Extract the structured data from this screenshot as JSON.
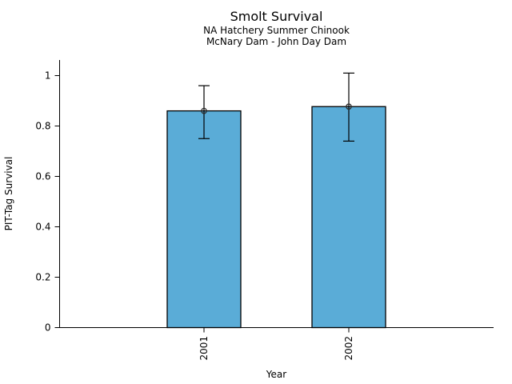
{
  "figure": {
    "title": "Smolt Survival",
    "subtitle_line1": "NA Hatchery Summer Chinook",
    "subtitle_line2": "McNary Dam - John Day Dam",
    "xlabel": "Year",
    "ylabel": "PIT-Tag Survival"
  },
  "chart_data": {
    "type": "bar",
    "title": "Smolt Survival",
    "subtitles": [
      "NA Hatchery Summer Chinook",
      "McNary Dam - John Day Dam"
    ],
    "xlabel": "Year",
    "ylabel": "PIT-Tag Survival",
    "categories": [
      "2001",
      "2002"
    ],
    "values": [
      0.86,
      0.877
    ],
    "error_low": [
      0.75,
      0.74
    ],
    "error_high": [
      0.96,
      1.01
    ],
    "ylim": [
      0,
      1.06
    ],
    "yticks": [
      0,
      0.2,
      0.4,
      0.6,
      0.8,
      1
    ],
    "ytick_labels": [
      "0",
      "0.2",
      "0.4",
      "0.6",
      "0.8",
      "1"
    ],
    "grid": false,
    "legend": null,
    "bar_color": "#5AACD7",
    "edge_color": "#000000",
    "axis_color": "#000000",
    "marker": "open-circle"
  }
}
